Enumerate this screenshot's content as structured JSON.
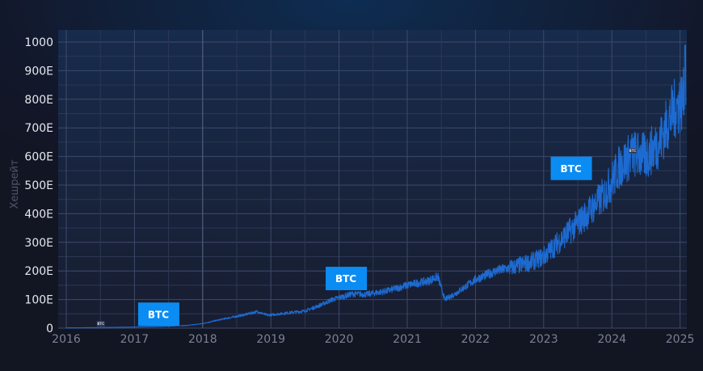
{
  "chart_data": {
    "type": "line",
    "title": "",
    "xlabel": "",
    "ylabel": "Хешрейт",
    "ylim": [
      0,
      1000
    ],
    "xlim": [
      2016,
      2025.1
    ],
    "grid": true,
    "legend": null,
    "y_ticks": [
      "0",
      "100E",
      "200E",
      "300E",
      "400E",
      "500E",
      "600E",
      "700E",
      "800E",
      "900E",
      "1000"
    ],
    "x_ticks": [
      "2016",
      "2017",
      "2018",
      "2019",
      "2020",
      "2021",
      "2022",
      "2023",
      "2024",
      "2025"
    ],
    "series": [
      {
        "name": "BTC",
        "color": "#1e6fd9",
        "x": [
          2016.0,
          2016.5,
          2017.0,
          2017.5,
          2017.8,
          2018.0,
          2018.3,
          2018.6,
          2018.8,
          2018.95,
          2019.2,
          2019.5,
          2019.7,
          2019.9,
          2020.2,
          2020.4,
          2020.7,
          2021.0,
          2021.3,
          2021.45,
          2021.55,
          2021.7,
          2022.0,
          2022.3,
          2022.5,
          2022.8,
          2023.0,
          2023.3,
          2023.6,
          2023.9,
          2024.1,
          2024.3,
          2024.5,
          2024.7,
          2024.9,
          2025.05,
          2025.08
        ],
        "values": [
          1,
          2,
          4,
          7,
          10,
          16,
          32,
          46,
          58,
          45,
          52,
          60,
          78,
          100,
          120,
          118,
          130,
          150,
          165,
          180,
          100,
          120,
          170,
          200,
          210,
          230,
          250,
          320,
          390,
          470,
          560,
          610,
          600,
          650,
          760,
          800,
          990
        ]
      }
    ],
    "annotations": [
      {
        "label": "BTC",
        "x": 2017.35,
        "y": 50,
        "style": "large"
      },
      {
        "label": "BTC",
        "x": 2020.1,
        "y": 175,
        "style": "large"
      },
      {
        "label": "BTC",
        "x": 2023.4,
        "y": 560,
        "style": "large"
      },
      {
        "label": "BTC",
        "x": 2016.5,
        "y": 15,
        "style": "small"
      },
      {
        "label": "BTC",
        "x": 2024.3,
        "y": 620,
        "style": "small"
      }
    ]
  },
  "axis": {
    "ylabel": "Хешрейт"
  },
  "colors": {
    "line": "#1e6fd9",
    "badge": "#0b8cf2",
    "grid": "#3a4766"
  }
}
